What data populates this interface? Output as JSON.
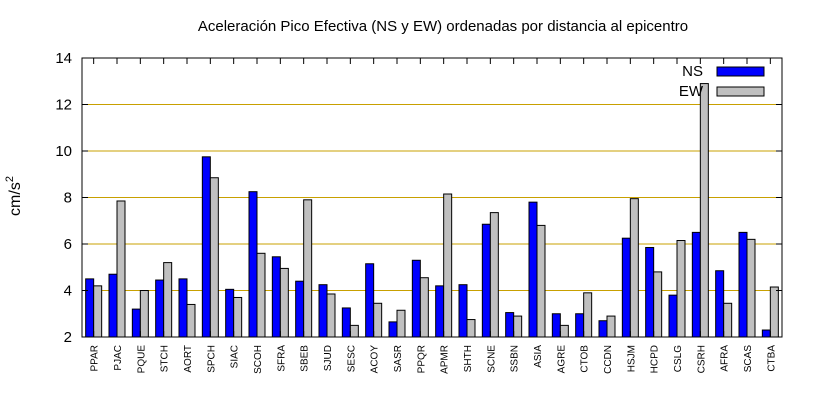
{
  "chart_data": {
    "type": "bar",
    "title": "Aceleración Pico Efectiva (NS y EW) ordenadas por distancia al epicentro",
    "ylabel": "cm/s",
    "ylabel_sup": "2",
    "xlabel": "",
    "ylim": [
      2,
      14
    ],
    "yticks": [
      2,
      4,
      6,
      8,
      10,
      12,
      14
    ],
    "grid": true,
    "legend_position": "top-right",
    "categories": [
      "PPAR",
      "PJAC",
      "PQUE",
      "STCH",
      "AORT",
      "SPCH",
      "SIAC",
      "SCOH",
      "SFRA",
      "SBEB",
      "SJUD",
      "SESC",
      "ACOY",
      "SASR",
      "PPQR",
      "APMR",
      "SHTH",
      "SCNE",
      "SSBN",
      "ASIA",
      "AGRE",
      "CTOB",
      "CCDN",
      "HSJM",
      "HCPD",
      "CSLG",
      "CSRH",
      "AFRA",
      "SCAS",
      "CTBA"
    ],
    "series": [
      {
        "name": "NS",
        "color": "#0000ff",
        "values": [
          4.5,
          4.7,
          3.2,
          4.45,
          4.5,
          9.75,
          4.05,
          8.25,
          5.45,
          4.4,
          4.25,
          3.25,
          5.15,
          2.65,
          5.3,
          4.2,
          4.25,
          6.85,
          3.05,
          7.8,
          3.0,
          3.0,
          2.7,
          6.25,
          5.85,
          3.8,
          6.5,
          4.85,
          6.5,
          2.3
        ]
      },
      {
        "name": "EW",
        "color": "#c0c0c0",
        "values": [
          4.2,
          7.85,
          4.0,
          5.2,
          3.4,
          8.85,
          3.7,
          5.6,
          4.95,
          7.9,
          3.85,
          2.5,
          3.45,
          3.15,
          4.55,
          8.15,
          2.75,
          7.35,
          2.9,
          6.8,
          2.5,
          3.9,
          2.9,
          7.95,
          4.8,
          6.15,
          12.9,
          3.45,
          6.2,
          4.15
        ]
      }
    ]
  }
}
